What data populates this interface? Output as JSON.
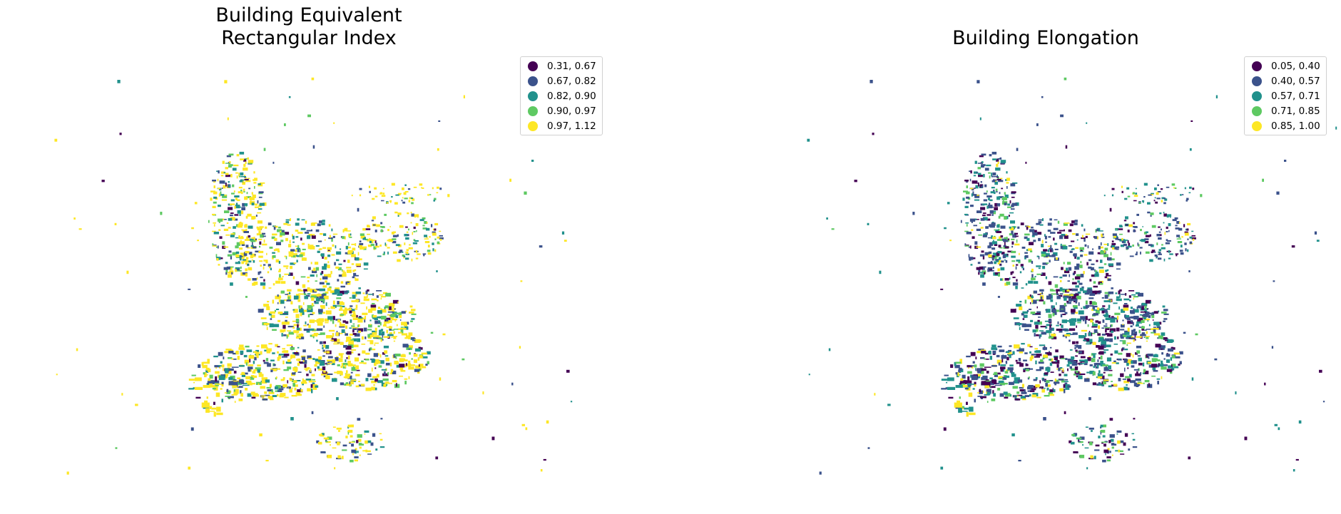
{
  "maps": [
    {
      "title_line1": "Building Equivalent",
      "title_line2": "Rectangular Index",
      "legend": [
        {
          "label": "0.31, 0.67",
          "color": "#440154"
        },
        {
          "label": "0.67, 0.82",
          "color": "#3b528b"
        },
        {
          "label": "0.82, 0.90",
          "color": "#21918c"
        },
        {
          "label": "0.90, 0.97",
          "color": "#5ec962"
        },
        {
          "label": "0.97, 1.12",
          "color": "#fde725"
        }
      ],
      "class_weights": [
        0.05,
        0.17,
        0.15,
        0.13,
        0.5
      ]
    },
    {
      "title_line1": "Building Elongation",
      "title_line2": "",
      "legend": [
        {
          "label": "0.05, 0.40",
          "color": "#440154"
        },
        {
          "label": "0.40, 0.57",
          "color": "#3b528b"
        },
        {
          "label": "0.57, 0.71",
          "color": "#21918c"
        },
        {
          "label": "0.71, 0.85",
          "color": "#5ec962"
        },
        {
          "label": "0.85, 1.00",
          "color": "#fde725"
        }
      ],
      "class_weights": [
        0.22,
        0.33,
        0.25,
        0.12,
        0.08
      ]
    }
  ]
}
